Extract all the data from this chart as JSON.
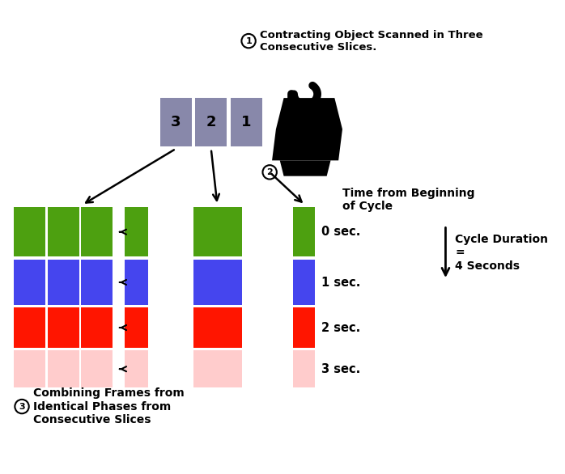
{
  "bg_color": "#ffffff",
  "slice_color": "#8888aa",
  "slice_labels": [
    "3",
    "2",
    "1"
  ],
  "colors": {
    "green": "#4da010",
    "blue": "#4545ee",
    "red": "#ff1500",
    "pink": "#ffcccc"
  },
  "time_labels": [
    "0 sec.",
    "1 sec.",
    "2 sec.",
    "3 sec."
  ],
  "label1": "Contracting Object Scanned in Three\nConsecutive Slices.",
  "label2": "Time from Beginning\nof Cycle",
  "label3": "Combining Frames from\nIdentical Phases from\nConsecutive Slices",
  "cycle_label": "Cycle Duration\n=\n4 Seconds",
  "probe_color": "#111111"
}
